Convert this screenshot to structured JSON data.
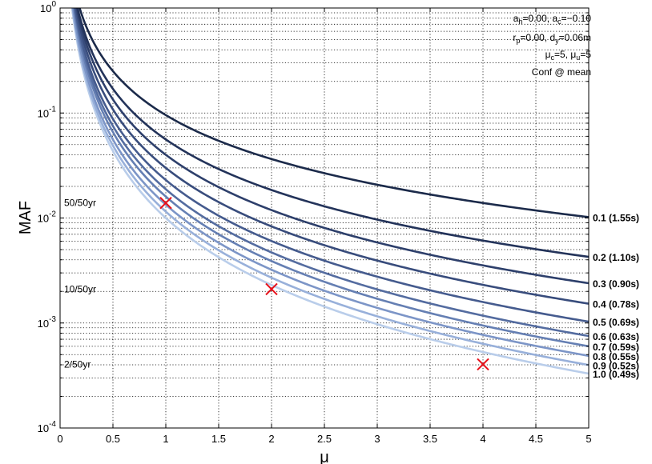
{
  "chart_data": {
    "type": "line",
    "xlabel": "μ",
    "ylabel": "MAF",
    "xlim": [
      0,
      5
    ],
    "ylim": [
      0.0001,
      1
    ],
    "yscale": "log",
    "grid": true,
    "x_ticks": [
      "0",
      "0.5",
      "1",
      "1.5",
      "2",
      "2.5",
      "3",
      "3.5",
      "4",
      "4.5",
      "5"
    ],
    "y_ticks": [
      {
        "base": "10",
        "exp": "-4",
        "value": 0.0001
      },
      {
        "base": "10",
        "exp": "-3",
        "value": 0.001
      },
      {
        "base": "10",
        "exp": "-2",
        "value": 0.01
      },
      {
        "base": "10",
        "exp": "-1",
        "value": 0.1
      },
      {
        "base": "10",
        "exp": "0",
        "value": 1
      }
    ],
    "annotations": {
      "line1": {
        "a": "a",
        "h": "h",
        "v1": "=0.00, ",
        "a2": "a",
        "c": "c",
        "v2": "=−0.10"
      },
      "line2": {
        "r": "r",
        "p": "p",
        "v1": "=0.00, ",
        "d": "d",
        "y": "y",
        "v2": "=0.06m"
      },
      "line3": {
        "mu": "μ",
        "c": "c",
        "v1": "=5, ",
        "mu2": "μ",
        "u": "u",
        "v2": "=5"
      },
      "line4": "Conf @ mean"
    },
    "reference_levels": [
      {
        "label": "50/50yr",
        "y": 0.0139
      },
      {
        "label": "10/50yr",
        "y": 0.0021
      },
      {
        "label": "2/50yr",
        "y": 0.000404
      }
    ],
    "highlight_points": [
      {
        "x": 1,
        "y": 0.0139
      },
      {
        "x": 2,
        "y": 0.0021
      },
      {
        "x": 4,
        "y": 0.000404
      }
    ],
    "highlight_color": "#e8101a",
    "series": [
      {
        "name": "0.1 (1.55s)",
        "color": "#1b2a4a",
        "a": 0.0955,
        "b": 1.39
      },
      {
        "name": "0.2 (1.10s)",
        "color": "#23335a",
        "a": 0.056,
        "b": 1.6
      },
      {
        "name": "0.3 (0.90s)",
        "color": "#2d3f6b",
        "a": 0.04,
        "b": 1.75
      },
      {
        "name": "0.4 (0.78s)",
        "color": "#384c7c",
        "a": 0.03,
        "b": 1.85
      },
      {
        "name": "0.5 (0.69s)",
        "color": "#455b8e",
        "a": 0.023,
        "b": 1.93
      },
      {
        "name": "0.6 (0.63s)",
        "color": "#546ca0",
        "a": 0.0188,
        "b": 2.0
      },
      {
        "name": "0.7 (0.59s)",
        "color": "#657fb3",
        "a": 0.016,
        "b": 2.04
      },
      {
        "name": "0.8 (0.55s)",
        "color": "#7c95c7",
        "a": 0.0134,
        "b": 2.06
      },
      {
        "name": "0.9 (0.52s)",
        "color": "#98b0da",
        "a": 0.0115,
        "b": 2.09
      },
      {
        "name": "1.0 (0.49s)",
        "color": "#b9cdea",
        "a": 0.01,
        "b": 2.12
      }
    ]
  }
}
